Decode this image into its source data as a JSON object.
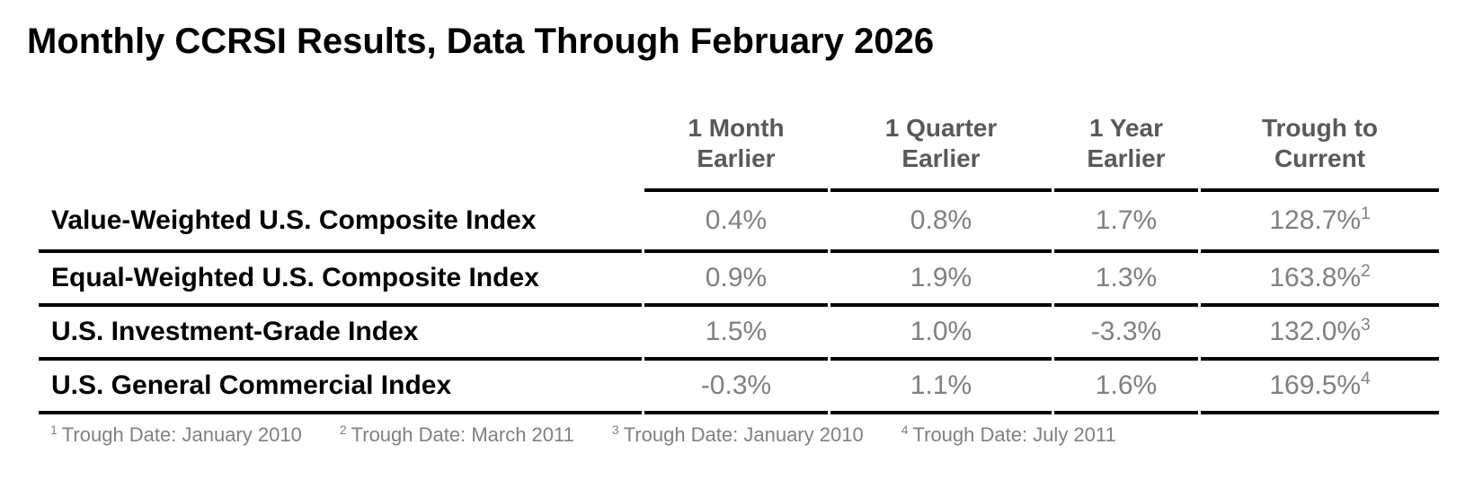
{
  "title": "Monthly CCRSI Results, Data Through February 2026",
  "table": {
    "columns": [
      {
        "line1": "1 Month",
        "line2": "Earlier"
      },
      {
        "line1": "1 Quarter",
        "line2": "Earlier"
      },
      {
        "line1": "1 Year",
        "line2": "Earlier"
      },
      {
        "line1": "Trough to",
        "line2": "Current"
      }
    ],
    "rows": [
      {
        "label": "Value-Weighted U.S. Composite Index",
        "month_earlier": "0.4%",
        "quarter_earlier": "0.8%",
        "year_earlier": "1.7%",
        "trough_to_current": "128.7%",
        "footnote_ref": "1"
      },
      {
        "label": "Equal-Weighted U.S. Composite Index",
        "month_earlier": "0.9%",
        "quarter_earlier": "1.9%",
        "year_earlier": "1.3%",
        "trough_to_current": "163.8%",
        "footnote_ref": "2"
      },
      {
        "label": "U.S. Investment-Grade Index",
        "month_earlier": "1.5%",
        "quarter_earlier": "1.0%",
        "year_earlier": "-3.3%",
        "trough_to_current": "132.0%",
        "footnote_ref": "3"
      },
      {
        "label": "U.S. General Commercial Index",
        "month_earlier": "-0.3%",
        "quarter_earlier": "1.1%",
        "year_earlier": "1.6%",
        "trough_to_current": "169.5%",
        "footnote_ref": "4"
      }
    ]
  },
  "footnotes": [
    {
      "ref": "1",
      "text": "Trough Date: January 2010"
    },
    {
      "ref": "2",
      "text": "Trough Date: March 2011"
    },
    {
      "ref": "3",
      "text": "Trough Date: January 2010"
    },
    {
      "ref": "4",
      "text": "Trough Date: July 2011"
    }
  ],
  "colors": {
    "title_text": "#000000",
    "row_label_text": "#000000",
    "column_header_text": "#595959",
    "value_text": "#808080",
    "footnote_text": "#808080",
    "rule_lines": "#000000",
    "background": "#ffffff"
  }
}
